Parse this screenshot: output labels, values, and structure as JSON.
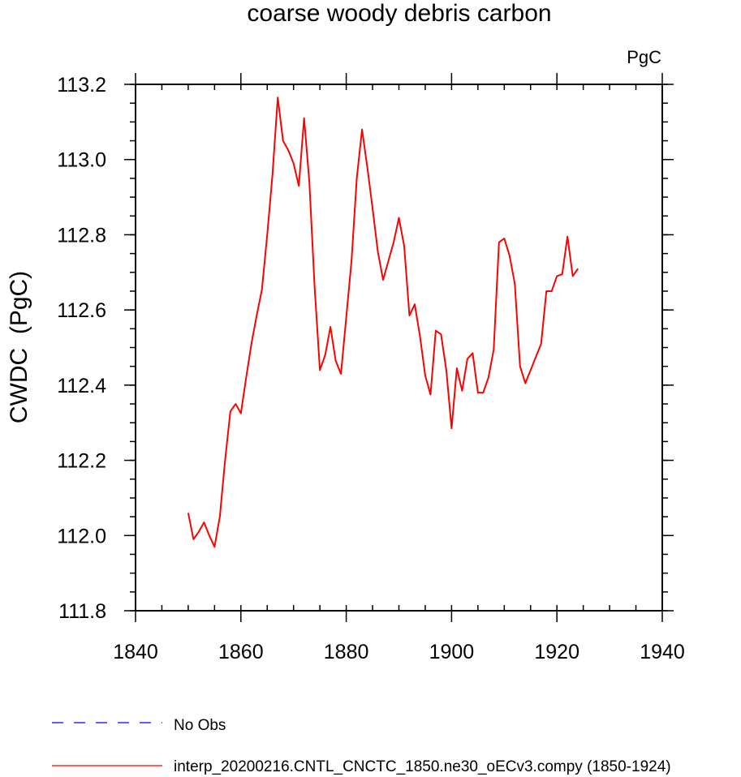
{
  "chart_data": {
    "type": "line",
    "title": "coarse woody debris carbon",
    "units_label": "PgC",
    "ylabel": "CWDC  (PgC)",
    "xlabel": "",
    "xlim": [
      1840,
      1940
    ],
    "ylim": [
      111.8,
      113.2
    ],
    "x_ticks": [
      1840,
      1860,
      1880,
      1900,
      1920,
      1940
    ],
    "x_tick_labels": [
      "1840",
      "1860",
      "1880",
      "1900",
      "1920",
      "1940"
    ],
    "y_ticks": [
      111.8,
      112.0,
      112.2,
      112.4,
      112.6,
      112.8,
      113.0,
      113.2
    ],
    "y_tick_labels": [
      "111.8",
      "112.0",
      "112.2",
      "112.4",
      "112.6",
      "112.8",
      "113.0",
      "113.2"
    ],
    "grid": false,
    "legend_position": "bottom-left",
    "legend": [
      {
        "label": "No Obs",
        "color": "#0000ff",
        "style": "dashed"
      },
      {
        "label": "interp_20200216.CNTL_CNCTC_1850.ne30_oECv3.compy (1850-1924)",
        "color": "#ff0000",
        "style": "solid"
      }
    ],
    "series": [
      {
        "name": "interp_20200216.CNTL_CNCTC_1850.ne30_oECv3.compy (1850-1924)",
        "color": "#ff0000",
        "x": [
          1850,
          1851,
          1852,
          1853,
          1854,
          1855,
          1856,
          1857,
          1858,
          1859,
          1860,
          1861,
          1862,
          1863,
          1864,
          1865,
          1866,
          1867,
          1868,
          1869,
          1870,
          1871,
          1872,
          1873,
          1874,
          1875,
          1876,
          1877,
          1878,
          1879,
          1880,
          1881,
          1882,
          1883,
          1884,
          1885,
          1886,
          1887,
          1888,
          1889,
          1890,
          1891,
          1892,
          1893,
          1894,
          1895,
          1896,
          1897,
          1898,
          1899,
          1900,
          1901,
          1902,
          1903,
          1904,
          1905,
          1906,
          1907,
          1908,
          1909,
          1910,
          1911,
          1912,
          1913,
          1914,
          1915,
          1916,
          1917,
          1918,
          1919,
          1920,
          1921,
          1922,
          1923,
          1924
        ],
        "values": [
          112.06,
          111.99,
          112.01,
          112.035,
          112.0,
          111.97,
          112.05,
          112.2,
          112.33,
          112.35,
          112.325,
          112.42,
          112.51,
          112.585,
          112.655,
          112.8,
          112.96,
          113.165,
          113.05,
          113.025,
          112.99,
          112.93,
          113.11,
          112.94,
          112.66,
          112.44,
          112.48,
          112.555,
          112.465,
          112.43,
          112.58,
          112.73,
          112.95,
          113.08,
          112.98,
          112.87,
          112.755,
          112.68,
          112.73,
          112.78,
          112.845,
          112.77,
          112.585,
          112.615,
          112.53,
          112.425,
          112.375,
          112.545,
          112.535,
          112.44,
          112.285,
          112.445,
          112.385,
          112.47,
          112.485,
          112.38,
          112.38,
          112.42,
          112.495,
          112.78,
          112.79,
          112.745,
          112.67,
          112.45,
          112.405,
          112.44,
          112.475,
          112.51,
          112.65,
          112.65,
          112.69,
          112.695,
          112.795,
          112.69,
          112.71
        ]
      }
    ]
  }
}
